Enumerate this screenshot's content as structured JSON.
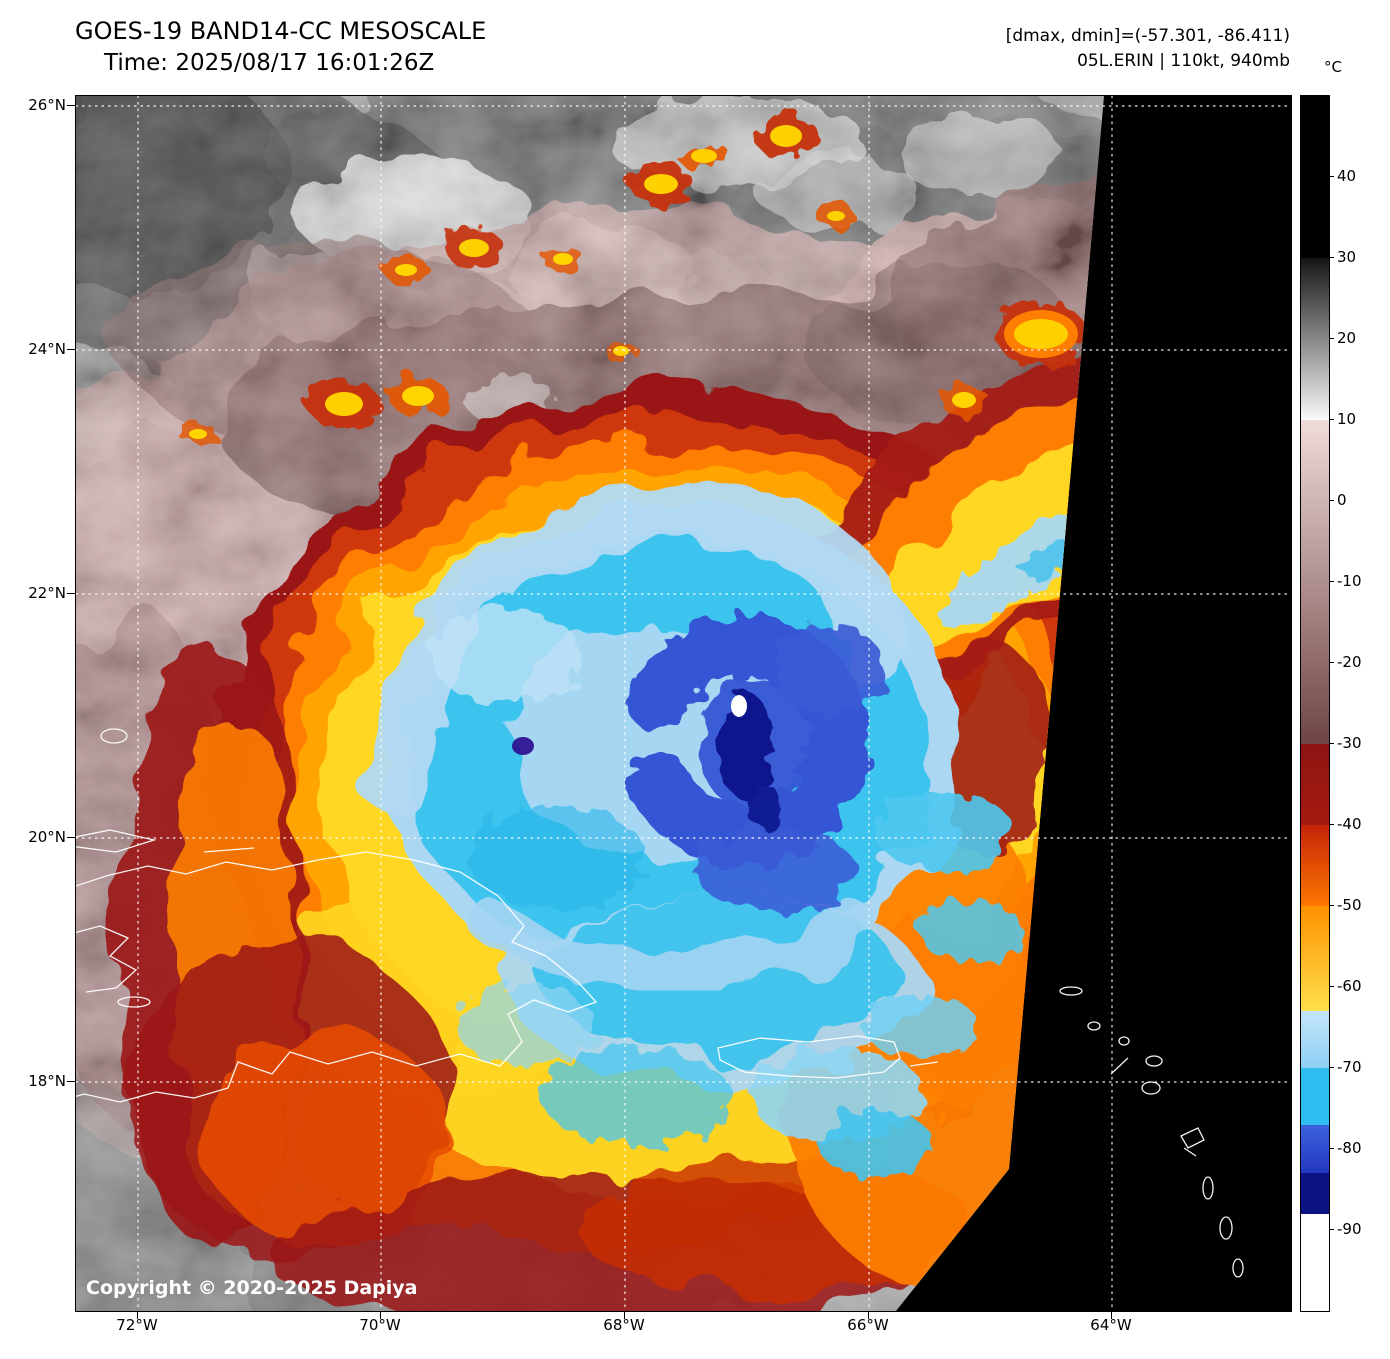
{
  "header": {
    "title": "GOES-19 BAND14-CC MESOSCALE",
    "time": "Time: 2025/08/17 16:01:26Z",
    "range": "[dmax, dmin]=(-57.301, -86.411)",
    "storm": "05L.ERIN | 110kt, 940mb"
  },
  "map": {
    "copyright": "Copyright © 2020-2025 Dapiya",
    "lat_labels": [
      "26°N",
      "24°N",
      "22°N",
      "20°N",
      "18°N"
    ],
    "lon_labels": [
      "72°W",
      "70°W",
      "68°W",
      "66°W",
      "64°W"
    ]
  },
  "colorbar": {
    "unit": "°C",
    "max": 50,
    "min": -100,
    "ticks": [
      40,
      30,
      20,
      10,
      0,
      -10,
      -20,
      -30,
      -40,
      -50,
      -60,
      -70,
      -80,
      -90
    ],
    "segments": [
      {
        "from": 50,
        "to": 30,
        "c1": "#000000",
        "c2": "#000000"
      },
      {
        "from": 30,
        "to": 10,
        "c1": "#151515",
        "c2": "#fbfbfb"
      },
      {
        "from": 10,
        "to": -30,
        "c1": "#f0dbdb",
        "c2": "#6e4444"
      },
      {
        "from": -30,
        "to": -40,
        "c1": "#8e1414",
        "c2": "#a51a10"
      },
      {
        "from": -40,
        "to": -50,
        "c1": "#c42408",
        "c2": "#ff7800"
      },
      {
        "from": -50,
        "to": -63,
        "c1": "#ff9100",
        "c2": "#ffe14d"
      },
      {
        "from": -63,
        "to": -70,
        "c1": "#c3e6fa",
        "c2": "#8ecff4"
      },
      {
        "from": -70,
        "to": -77,
        "c1": "#2fbcee",
        "c2": "#2fbcee"
      },
      {
        "from": -77,
        "to": -83,
        "c1": "#3a62dc",
        "c2": "#2336c0"
      },
      {
        "from": -83,
        "to": -88,
        "c1": "#0d1284",
        "c2": "#0d1284"
      },
      {
        "from": -88,
        "to": -100,
        "c1": "#ffffff",
        "c2": "#ffffff"
      }
    ]
  }
}
